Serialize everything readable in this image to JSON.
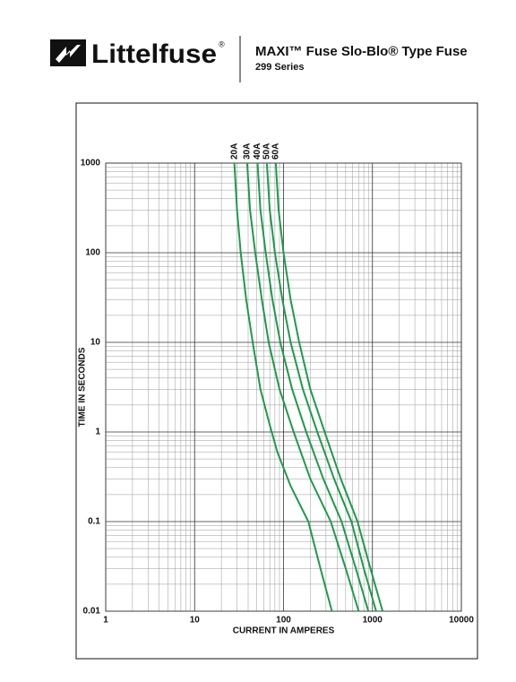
{
  "header": {
    "brand": "Littelfuse",
    "brand_mark": "®",
    "title": "MAXI™ Fuse Slo-Blo® Type Fuse",
    "subtitle": "299 Series"
  },
  "chart_data": {
    "type": "line",
    "x_label": "CURRENT IN AMPERES",
    "y_label": "TIME IN SECONDS",
    "xscale": "log",
    "yscale": "log",
    "grid": "minor",
    "xlim": [
      1,
      10000
    ],
    "ylim": [
      0.01,
      1000
    ],
    "xticks": [
      1,
      10,
      100,
      1000,
      10000
    ],
    "yticks": [
      0.01,
      0.1,
      1,
      10,
      100,
      1000
    ],
    "series": [
      {
        "name": "20A",
        "color": "#1f9a4b",
        "x": [
          28,
          30,
          33,
          38,
          45,
          55,
          70,
          85,
          120,
          190,
          260,
          350
        ],
        "values": [
          1000,
          300,
          100,
          30,
          10,
          3,
          1.2,
          0.6,
          0.25,
          0.1,
          0.03,
          0.01
        ]
      },
      {
        "name": "30A",
        "color": "#1f9a4b",
        "x": [
          39,
          42,
          48,
          57,
          68,
          90,
          130,
          200,
          340,
          500,
          700
        ],
        "values": [
          1000,
          300,
          100,
          30,
          10,
          3,
          1,
          0.3,
          0.1,
          0.03,
          0.01
        ]
      },
      {
        "name": "40A",
        "color": "#1f9a4b",
        "x": [
          51,
          55,
          63,
          75,
          92,
          125,
          180,
          280,
          450,
          650,
          900
        ],
        "values": [
          1000,
          300,
          100,
          30,
          10,
          3,
          1,
          0.3,
          0.1,
          0.03,
          0.01
        ]
      },
      {
        "name": "50A",
        "color": "#1f9a4b",
        "x": [
          65,
          70,
          80,
          97,
          120,
          165,
          240,
          370,
          580,
          800,
          1100
        ],
        "values": [
          1000,
          300,
          100,
          30,
          10,
          3,
          1,
          0.3,
          0.1,
          0.03,
          0.01
        ]
      },
      {
        "name": "60A",
        "color": "#1f9a4b",
        "x": [
          82,
          88,
          100,
          120,
          150,
          200,
          290,
          440,
          680,
          950,
          1300
        ],
        "values": [
          1000,
          300,
          100,
          30,
          10,
          3,
          1,
          0.3,
          0.1,
          0.03,
          0.01
        ]
      }
    ]
  }
}
